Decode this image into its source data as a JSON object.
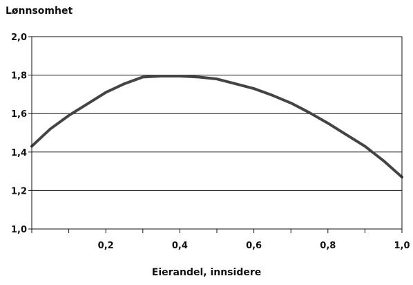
{
  "chart_data": {
    "type": "line",
    "title": "",
    "xlabel": "Eierandel, innsidere",
    "ylabel": "Lønnsomhet",
    "xlim": [
      0,
      1.0
    ],
    "ylim": [
      1.0,
      2.0
    ],
    "x_ticks": [
      0.2,
      0.4,
      0.6,
      0.8,
      1.0
    ],
    "x_tick_labels": [
      "0,2",
      "0,4",
      "0,6",
      "0,8",
      "1,0"
    ],
    "y_ticks": [
      1.0,
      1.2,
      1.4,
      1.6,
      1.8,
      2.0
    ],
    "y_tick_labels": [
      "1,0",
      "1,2",
      "1,4",
      "1,6",
      "1,8",
      "2,0"
    ],
    "grid": "horizontal",
    "series": [
      {
        "name": "",
        "color": "#444444",
        "x": [
          0,
          0.05,
          0.1,
          0.15,
          0.2,
          0.25,
          0.3,
          0.35,
          0.4,
          0.45,
          0.5,
          0.55,
          0.6,
          0.65,
          0.7,
          0.75,
          0.8,
          0.85,
          0.9,
          0.95,
          1.0
        ],
        "values": [
          1.43,
          1.52,
          1.59,
          1.65,
          1.71,
          1.755,
          1.79,
          1.795,
          1.795,
          1.79,
          1.78,
          1.755,
          1.73,
          1.695,
          1.655,
          1.605,
          1.55,
          1.49,
          1.43,
          1.355,
          1.27
        ]
      }
    ]
  }
}
